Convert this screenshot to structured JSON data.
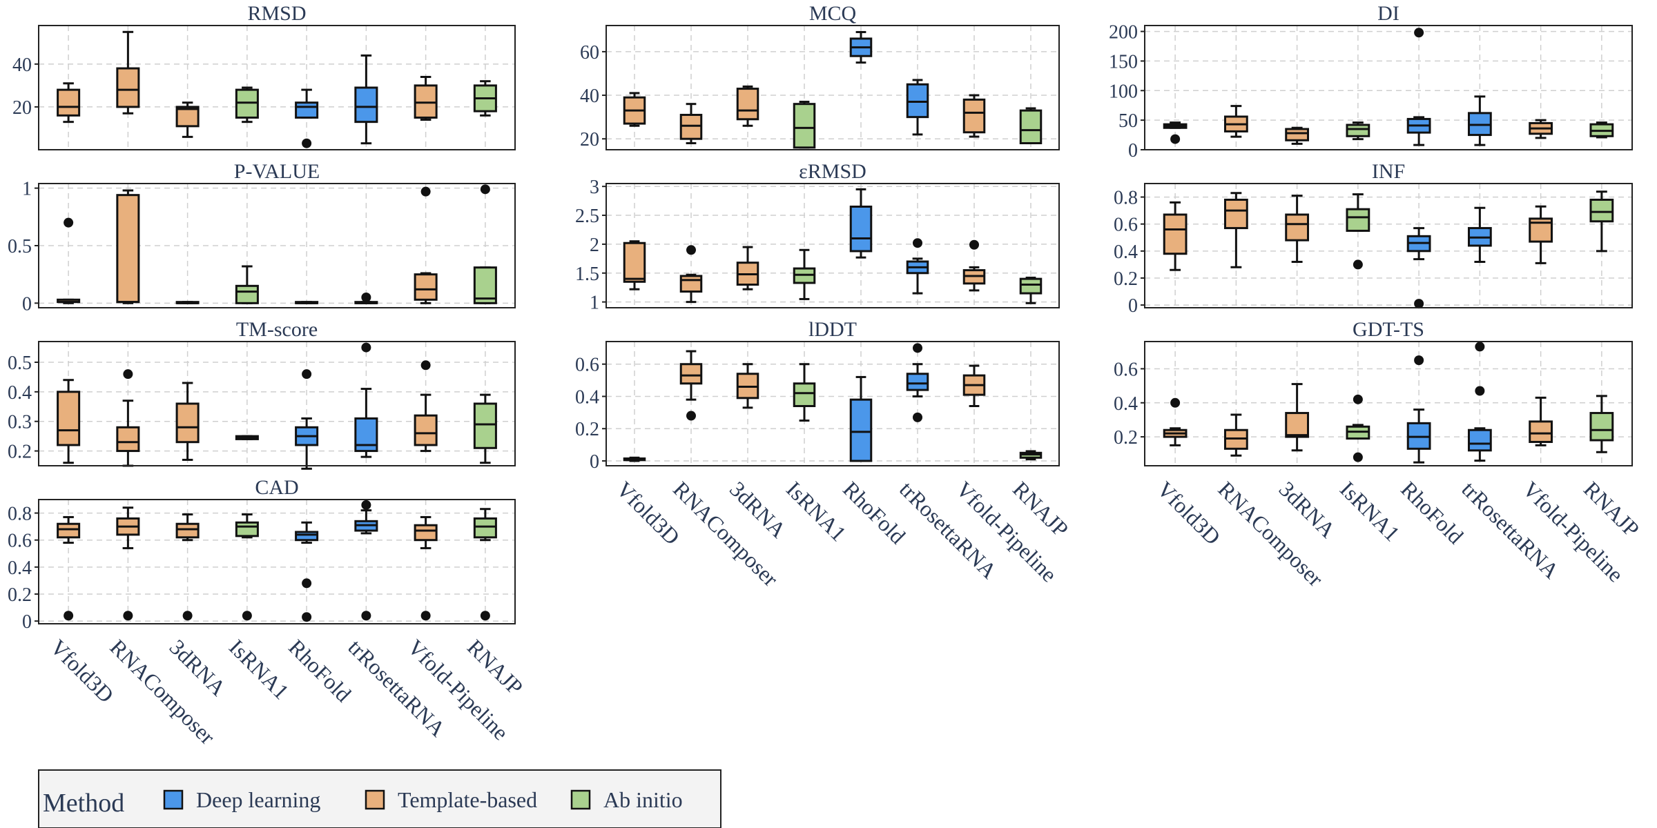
{
  "colors": {
    "Deep learning": "#4b97ea",
    "Template-based": "#e8b07d",
    "Ab initio": "#a9d18e"
  },
  "legend": {
    "title": "Method",
    "entries": [
      "Deep learning",
      "Template-based",
      "Ab initio"
    ]
  },
  "methods": [
    "Vfold3D",
    "RNAComposer",
    "3dRNA",
    "IsRNA1",
    "RhoFold",
    "trRosettaRNA",
    "Vfold-Pipeline",
    "RNAJP"
  ],
  "method_group": [
    "Template-based",
    "Template-based",
    "Template-based",
    "Ab initio",
    "Deep learning",
    "Deep learning",
    "Template-based",
    "Ab initio"
  ],
  "chart_data": [
    {
      "type": "box",
      "title": "RMSD",
      "ylim": [
        0,
        58
      ],
      "yticks": [
        20,
        40
      ],
      "ytick_labels": [
        "20",
        "40"
      ],
      "boxes": [
        {
          "method": "Vfold3D",
          "whislo": 13,
          "q1": 16,
          "med": 20,
          "q3": 28,
          "whishi": 31,
          "fliers": []
        },
        {
          "method": "RNAComposer",
          "whislo": 17,
          "q1": 20,
          "med": 28,
          "q3": 38,
          "whishi": 55,
          "fliers": []
        },
        {
          "method": "3dRNA",
          "whislo": 6,
          "q1": 11,
          "med": 19,
          "q3": 20,
          "whishi": 22,
          "fliers": []
        },
        {
          "method": "IsRNA1",
          "whislo": 13,
          "q1": 15,
          "med": 22,
          "q3": 28,
          "whishi": 29,
          "fliers": []
        },
        {
          "method": "RhoFold",
          "whislo": 15,
          "q1": 15,
          "med": 20,
          "q3": 22,
          "whishi": 28,
          "fliers": [
            3
          ]
        },
        {
          "method": "trRosettaRNA",
          "whislo": 3,
          "q1": 13,
          "med": 20,
          "q3": 29,
          "whishi": 44,
          "fliers": []
        },
        {
          "method": "Vfold-Pipeline",
          "whislo": 14,
          "q1": 15,
          "med": 22,
          "q3": 30,
          "whishi": 34,
          "fliers": []
        },
        {
          "method": "RNAJP",
          "whislo": 16,
          "q1": 18,
          "med": 24,
          "q3": 30,
          "whishi": 32,
          "fliers": []
        }
      ]
    },
    {
      "type": "box",
      "title": "MCQ",
      "ylim": [
        15,
        72
      ],
      "yticks": [
        20,
        40,
        60
      ],
      "ytick_labels": [
        "20",
        "40",
        "60"
      ],
      "boxes": [
        {
          "method": "Vfold3D",
          "whislo": 26,
          "q1": 27,
          "med": 33,
          "q3": 39,
          "whishi": 41,
          "fliers": []
        },
        {
          "method": "RNAComposer",
          "whislo": 18,
          "q1": 20,
          "med": 26,
          "q3": 31,
          "whishi": 36,
          "fliers": []
        },
        {
          "method": "3dRNA",
          "whislo": 26,
          "q1": 29,
          "med": 33,
          "q3": 43,
          "whishi": 44,
          "fliers": []
        },
        {
          "method": "IsRNA1",
          "whislo": 16,
          "q1": 16,
          "med": 25,
          "q3": 36,
          "whishi": 37,
          "fliers": []
        },
        {
          "method": "RhoFold",
          "whislo": 55,
          "q1": 58,
          "med": 62,
          "q3": 66,
          "whishi": 69,
          "fliers": []
        },
        {
          "method": "trRosettaRNA",
          "whislo": 22,
          "q1": 30,
          "med": 37,
          "q3": 45,
          "whishi": 47,
          "fliers": []
        },
        {
          "method": "Vfold-Pipeline",
          "whislo": 21,
          "q1": 23,
          "med": 32,
          "q3": 38,
          "whishi": 40,
          "fliers": []
        },
        {
          "method": "RNAJP",
          "whislo": 18,
          "q1": 18,
          "med": 24,
          "q3": 33,
          "whishi": 34,
          "fliers": []
        }
      ]
    },
    {
      "type": "box",
      "title": "DI",
      "ylim": [
        0,
        210
      ],
      "yticks": [
        0,
        50,
        100,
        150,
        200
      ],
      "ytick_labels": [
        "0",
        "50",
        "100",
        "150",
        "200"
      ],
      "boxes": [
        {
          "method": "Vfold3D",
          "whislo": 37,
          "q1": 37,
          "med": 40,
          "q3": 43,
          "whishi": 46,
          "fliers": [
            18
          ]
        },
        {
          "method": "RNAComposer",
          "whislo": 22,
          "q1": 31,
          "med": 43,
          "q3": 56,
          "whishi": 74,
          "fliers": []
        },
        {
          "method": "3dRNA",
          "whislo": 10,
          "q1": 16,
          "med": 28,
          "q3": 35,
          "whishi": 37,
          "fliers": []
        },
        {
          "method": "IsRNA1",
          "whislo": 18,
          "q1": 23,
          "med": 35,
          "q3": 42,
          "whishi": 46,
          "fliers": []
        },
        {
          "method": "RhoFold",
          "whislo": 8,
          "q1": 29,
          "med": 41,
          "q3": 52,
          "whishi": 55,
          "fliers": [
            198
          ]
        },
        {
          "method": "trRosettaRNA",
          "whislo": 8,
          "q1": 25,
          "med": 42,
          "q3": 62,
          "whishi": 90,
          "fliers": []
        },
        {
          "method": "Vfold-Pipeline",
          "whislo": 20,
          "q1": 27,
          "med": 36,
          "q3": 45,
          "whishi": 50,
          "fliers": []
        },
        {
          "method": "RNAJP",
          "whislo": 21,
          "q1": 23,
          "med": 32,
          "q3": 43,
          "whishi": 46,
          "fliers": []
        }
      ]
    },
    {
      "type": "box",
      "title": "P-VALUE",
      "ylim": [
        -0.04,
        1.04
      ],
      "yticks": [
        0,
        0.5,
        1
      ],
      "ytick_labels": [
        "0",
        "0.5",
        "1"
      ],
      "boxes": [
        {
          "method": "Vfold3D",
          "whislo": 0,
          "q1": 0.01,
          "med": 0.01,
          "q3": 0.03,
          "whishi": 0.03,
          "fliers": [
            0.7
          ]
        },
        {
          "method": "RNAComposer",
          "whislo": 0,
          "q1": 0.01,
          "med": 0.01,
          "q3": 0.94,
          "whishi": 0.98,
          "fliers": []
        },
        {
          "method": "3dRNA",
          "whislo": 0,
          "q1": 0,
          "med": 0,
          "q3": 0.01,
          "whishi": 0.01,
          "fliers": []
        },
        {
          "method": "IsRNA1",
          "whislo": 0,
          "q1": 0,
          "med": 0.1,
          "q3": 0.15,
          "whishi": 0.32,
          "fliers": []
        },
        {
          "method": "RhoFold",
          "whislo": 0,
          "q1": 0,
          "med": 0,
          "q3": 0.01,
          "whishi": 0.01,
          "fliers": []
        },
        {
          "method": "trRosettaRNA",
          "whislo": 0,
          "q1": 0,
          "med": 0,
          "q3": 0.01,
          "whishi": 0.01,
          "fliers": [
            0.05
          ]
        },
        {
          "method": "Vfold-Pipeline",
          "whislo": 0,
          "q1": 0.03,
          "med": 0.12,
          "q3": 0.25,
          "whishi": 0.26,
          "fliers": [
            0.97
          ]
        },
        {
          "method": "RNAJP",
          "whislo": 0,
          "q1": 0,
          "med": 0.04,
          "q3": 0.31,
          "whishi": 0.31,
          "fliers": [
            0.99
          ]
        }
      ]
    },
    {
      "type": "box",
      "title": "εRMSD",
      "ylim": [
        0.9,
        3.05
      ],
      "yticks": [
        1,
        1.5,
        2,
        2.5,
        3
      ],
      "ytick_labels": [
        "1",
        "1.5",
        "2",
        "2.5",
        "3"
      ],
      "boxes": [
        {
          "method": "Vfold3D",
          "whislo": 1.22,
          "q1": 1.35,
          "med": 1.4,
          "q3": 2.02,
          "whishi": 2.05,
          "fliers": []
        },
        {
          "method": "RNAComposer",
          "whislo": 1.0,
          "q1": 1.18,
          "med": 1.38,
          "q3": 1.45,
          "whishi": 1.47,
          "fliers": [
            1.9
          ]
        },
        {
          "method": "3dRNA",
          "whislo": 1.22,
          "q1": 1.3,
          "med": 1.48,
          "q3": 1.68,
          "whishi": 1.95,
          "fliers": []
        },
        {
          "method": "IsRNA1",
          "whislo": 1.05,
          "q1": 1.33,
          "med": 1.47,
          "q3": 1.58,
          "whishi": 1.9,
          "fliers": []
        },
        {
          "method": "RhoFold",
          "whislo": 1.77,
          "q1": 1.88,
          "med": 2.1,
          "q3": 2.65,
          "whishi": 2.95,
          "fliers": []
        },
        {
          "method": "trRosettaRNA",
          "whislo": 1.15,
          "q1": 1.5,
          "med": 1.6,
          "q3": 1.7,
          "whishi": 1.75,
          "fliers": [
            2.02
          ]
        },
        {
          "method": "Vfold-Pipeline",
          "whislo": 1.2,
          "q1": 1.32,
          "med": 1.45,
          "q3": 1.55,
          "whishi": 1.6,
          "fliers": [
            1.99
          ]
        },
        {
          "method": "RNAJP",
          "whislo": 0.98,
          "q1": 1.15,
          "med": 1.3,
          "q3": 1.4,
          "whishi": 1.42,
          "fliers": []
        }
      ]
    },
    {
      "type": "box",
      "title": "INF",
      "ylim": [
        -0.02,
        0.9
      ],
      "yticks": [
        0,
        0.2,
        0.4,
        0.6,
        0.8
      ],
      "ytick_labels": [
        "0",
        "0.2",
        "0.4",
        "0.6",
        "0.8"
      ],
      "boxes": [
        {
          "method": "Vfold3D",
          "whislo": 0.26,
          "q1": 0.38,
          "med": 0.56,
          "q3": 0.67,
          "whishi": 0.76,
          "fliers": []
        },
        {
          "method": "RNAComposer",
          "whislo": 0.28,
          "q1": 0.57,
          "med": 0.7,
          "q3": 0.78,
          "whishi": 0.83,
          "fliers": []
        },
        {
          "method": "3dRNA",
          "whislo": 0.32,
          "q1": 0.48,
          "med": 0.6,
          "q3": 0.67,
          "whishi": 0.81,
          "fliers": []
        },
        {
          "method": "IsRNA1",
          "whislo": 0.55,
          "q1": 0.55,
          "med": 0.65,
          "q3": 0.71,
          "whishi": 0.82,
          "fliers": [
            0.3
          ]
        },
        {
          "method": "RhoFold",
          "whislo": 0.34,
          "q1": 0.4,
          "med": 0.46,
          "q3": 0.51,
          "whishi": 0.57,
          "fliers": [
            0.01
          ]
        },
        {
          "method": "trRosettaRNA",
          "whislo": 0.32,
          "q1": 0.44,
          "med": 0.5,
          "q3": 0.57,
          "whishi": 0.72,
          "fliers": []
        },
        {
          "method": "Vfold-Pipeline",
          "whislo": 0.31,
          "q1": 0.47,
          "med": 0.61,
          "q3": 0.64,
          "whishi": 0.73,
          "fliers": []
        },
        {
          "method": "RNAJP",
          "whislo": 0.4,
          "q1": 0.62,
          "med": 0.69,
          "q3": 0.78,
          "whishi": 0.84,
          "fliers": []
        }
      ]
    },
    {
      "type": "box",
      "title": "TM-score",
      "ylim": [
        0.15,
        0.57
      ],
      "yticks": [
        0.2,
        0.3,
        0.4,
        0.5
      ],
      "ytick_labels": [
        "0.2",
        "0.3",
        "0.4",
        "0.5"
      ],
      "boxes": [
        {
          "method": "Vfold3D",
          "whislo": 0.16,
          "q1": 0.22,
          "med": 0.27,
          "q3": 0.4,
          "whishi": 0.44,
          "fliers": []
        },
        {
          "method": "RNAComposer",
          "whislo": 0.15,
          "q1": 0.2,
          "med": 0.23,
          "q3": 0.28,
          "whishi": 0.37,
          "fliers": [
            0.46
          ]
        },
        {
          "method": "3dRNA",
          "whislo": 0.17,
          "q1": 0.23,
          "med": 0.28,
          "q3": 0.36,
          "whishi": 0.43,
          "fliers": []
        },
        {
          "method": "IsRNA1",
          "whislo": 0.24,
          "q1": 0.24,
          "med": 0.245,
          "q3": 0.25,
          "whishi": 0.25,
          "fliers": []
        },
        {
          "method": "RhoFold",
          "whislo": 0.14,
          "q1": 0.22,
          "med": 0.25,
          "q3": 0.28,
          "whishi": 0.31,
          "fliers": [
            0.46
          ]
        },
        {
          "method": "trRosettaRNA",
          "whislo": 0.18,
          "q1": 0.2,
          "med": 0.22,
          "q3": 0.31,
          "whishi": 0.41,
          "fliers": [
            0.55
          ]
        },
        {
          "method": "Vfold-Pipeline",
          "whislo": 0.2,
          "q1": 0.22,
          "med": 0.26,
          "q3": 0.32,
          "whishi": 0.39,
          "fliers": [
            0.49
          ]
        },
        {
          "method": "RNAJP",
          "whislo": 0.16,
          "q1": 0.21,
          "med": 0.29,
          "q3": 0.36,
          "whishi": 0.39,
          "fliers": []
        }
      ]
    },
    {
      "type": "box",
      "title": "lDDT",
      "ylim": [
        -0.03,
        0.74
      ],
      "yticks": [
        0,
        0.2,
        0.4,
        0.6
      ],
      "ytick_labels": [
        "0",
        "0.2",
        "0.4",
        "0.6"
      ],
      "boxes": [
        {
          "method": "Vfold3D",
          "whislo": 0.0,
          "q1": 0.005,
          "med": 0.01,
          "q3": 0.015,
          "whishi": 0.02,
          "fliers": []
        },
        {
          "method": "RNAComposer",
          "whislo": 0.38,
          "q1": 0.48,
          "med": 0.53,
          "q3": 0.6,
          "whishi": 0.68,
          "fliers": [
            0.28
          ]
        },
        {
          "method": "3dRNA",
          "whislo": 0.33,
          "q1": 0.39,
          "med": 0.46,
          "q3": 0.54,
          "whishi": 0.6,
          "fliers": []
        },
        {
          "method": "IsRNA1",
          "whislo": 0.25,
          "q1": 0.34,
          "med": 0.42,
          "q3": 0.48,
          "whishi": 0.6,
          "fliers": []
        },
        {
          "method": "RhoFold",
          "whislo": 0.0,
          "q1": 0.0,
          "med": 0.18,
          "q3": 0.38,
          "whishi": 0.52,
          "fliers": []
        },
        {
          "method": "trRosettaRNA",
          "whislo": 0.4,
          "q1": 0.44,
          "med": 0.48,
          "q3": 0.54,
          "whishi": 0.6,
          "fliers": [
            0.27,
            0.7
          ]
        },
        {
          "method": "Vfold-Pipeline",
          "whislo": 0.34,
          "q1": 0.41,
          "med": 0.47,
          "q3": 0.53,
          "whishi": 0.59,
          "fliers": []
        },
        {
          "method": "RNAJP",
          "whislo": 0.01,
          "q1": 0.02,
          "med": 0.04,
          "q3": 0.05,
          "whishi": 0.06,
          "fliers": []
        }
      ]
    },
    {
      "type": "box",
      "title": "GDT-TS",
      "ylim": [
        0.03,
        0.76
      ],
      "yticks": [
        0.2,
        0.4,
        0.6
      ],
      "ytick_labels": [
        "0.2",
        "0.4",
        "0.6"
      ],
      "boxes": [
        {
          "method": "Vfold3D",
          "whislo": 0.15,
          "q1": 0.2,
          "med": 0.22,
          "q3": 0.24,
          "whishi": 0.25,
          "fliers": [
            0.4
          ]
        },
        {
          "method": "RNAComposer",
          "whislo": 0.09,
          "q1": 0.13,
          "med": 0.19,
          "q3": 0.24,
          "whishi": 0.33,
          "fliers": []
        },
        {
          "method": "3dRNA",
          "whislo": 0.12,
          "q1": 0.2,
          "med": 0.21,
          "q3": 0.34,
          "whishi": 0.51,
          "fliers": []
        },
        {
          "method": "IsRNA1",
          "whislo": 0.19,
          "q1": 0.19,
          "med": 0.23,
          "q3": 0.26,
          "whishi": 0.27,
          "fliers": [
            0.42,
            0.08
          ]
        },
        {
          "method": "RhoFold",
          "whislo": 0.05,
          "q1": 0.13,
          "med": 0.2,
          "q3": 0.28,
          "whishi": 0.36,
          "fliers": [
            0.65
          ]
        },
        {
          "method": "trRosettaRNA",
          "whislo": 0.06,
          "q1": 0.12,
          "med": 0.16,
          "q3": 0.24,
          "whishi": 0.25,
          "fliers": [
            0.47,
            0.73
          ]
        },
        {
          "method": "Vfold-Pipeline",
          "whislo": 0.15,
          "q1": 0.17,
          "med": 0.22,
          "q3": 0.29,
          "whishi": 0.43,
          "fliers": []
        },
        {
          "method": "RNAJP",
          "whislo": 0.11,
          "q1": 0.18,
          "med": 0.24,
          "q3": 0.34,
          "whishi": 0.44,
          "fliers": []
        }
      ]
    },
    {
      "type": "box",
      "title": "CAD",
      "ylim": [
        -0.02,
        0.9
      ],
      "yticks": [
        0,
        0.2,
        0.4,
        0.6,
        0.8
      ],
      "ytick_labels": [
        "0",
        "0.2",
        "0.4",
        "0.6",
        "0.8"
      ],
      "boxes": [
        {
          "method": "Vfold3D",
          "whislo": 0.58,
          "q1": 0.62,
          "med": 0.68,
          "q3": 0.72,
          "whishi": 0.77,
          "fliers": [
            0.04
          ]
        },
        {
          "method": "RNAComposer",
          "whislo": 0.54,
          "q1": 0.64,
          "med": 0.7,
          "q3": 0.76,
          "whishi": 0.84,
          "fliers": [
            0.04
          ]
        },
        {
          "method": "3dRNA",
          "whislo": 0.6,
          "q1": 0.62,
          "med": 0.68,
          "q3": 0.72,
          "whishi": 0.79,
          "fliers": [
            0.04
          ]
        },
        {
          "method": "IsRNA1",
          "whislo": 0.62,
          "q1": 0.63,
          "med": 0.7,
          "q3": 0.73,
          "whishi": 0.79,
          "fliers": [
            0.04
          ]
        },
        {
          "method": "RhoFold",
          "whislo": 0.58,
          "q1": 0.6,
          "med": 0.64,
          "q3": 0.66,
          "whishi": 0.73,
          "fliers": [
            0.28,
            0.03
          ]
        },
        {
          "method": "trRosettaRNA",
          "whislo": 0.65,
          "q1": 0.67,
          "med": 0.71,
          "q3": 0.74,
          "whishi": 0.82,
          "fliers": [
            0.86,
            0.04
          ]
        },
        {
          "method": "Vfold-Pipeline",
          "whislo": 0.54,
          "q1": 0.6,
          "med": 0.67,
          "q3": 0.71,
          "whishi": 0.77,
          "fliers": [
            0.04
          ]
        },
        {
          "method": "RNAJP",
          "whislo": 0.6,
          "q1": 0.62,
          "med": 0.7,
          "q3": 0.76,
          "whishi": 0.83,
          "fliers": [
            0.04
          ]
        }
      ]
    }
  ]
}
